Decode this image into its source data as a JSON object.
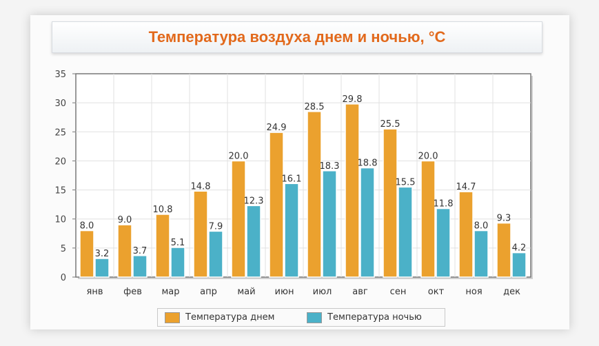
{
  "title": "Температура воздуха днем и ночью, °C",
  "chart_data": {
    "type": "bar",
    "categories": [
      "янв",
      "фев",
      "мар",
      "апр",
      "май",
      "июн",
      "июл",
      "авг",
      "сен",
      "окт",
      "ноя",
      "дек"
    ],
    "series": [
      {
        "name": "Температура днем",
        "color": "#eba12e",
        "values": [
          8.0,
          9.0,
          10.8,
          14.8,
          20.0,
          24.9,
          28.5,
          29.8,
          25.5,
          20.0,
          14.7,
          9.3
        ]
      },
      {
        "name": "Температура ночью",
        "color": "#4bb1c8",
        "values": [
          3.2,
          3.7,
          5.1,
          7.9,
          12.3,
          16.1,
          18.3,
          18.8,
          15.5,
          11.8,
          8.0,
          4.2
        ]
      }
    ],
    "ylim": [
      0,
      35
    ],
    "yticks": [
      0,
      5,
      10,
      15,
      20,
      25,
      30,
      35
    ],
    "grid": true,
    "legend_position": "bottom"
  }
}
